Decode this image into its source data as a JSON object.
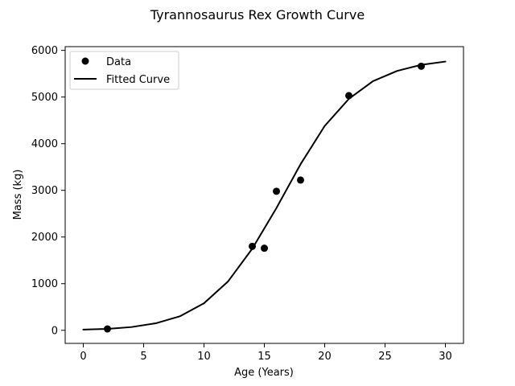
{
  "chart_data": {
    "type": "scatter",
    "title": "Tyrannosaurus Rex Growth Curve",
    "xlabel": "Age (Years)",
    "ylabel": "Mass (kg)",
    "xlim": [
      -1.5,
      31.5
    ],
    "ylim": [
      -280,
      6080
    ],
    "xticks": [
      0,
      5,
      10,
      15,
      20,
      25,
      30
    ],
    "yticks": [
      0,
      1000,
      2000,
      3000,
      4000,
      5000,
      6000
    ],
    "grid": false,
    "legend_position": "top-left",
    "series": [
      {
        "name": "Data",
        "kind": "scatter",
        "marker": "circle",
        "color": "#000000",
        "points": [
          {
            "x": 2,
            "y": 30
          },
          {
            "x": 14,
            "y": 1800
          },
          {
            "x": 15,
            "y": 1760
          },
          {
            "x": 16,
            "y": 2980
          },
          {
            "x": 18,
            "y": 3220
          },
          {
            "x": 22,
            "y": 5030
          },
          {
            "x": 28,
            "y": 5660
          }
        ]
      },
      {
        "name": "Fitted Curve",
        "kind": "line",
        "color": "#000000",
        "points": [
          {
            "x": 0,
            "y": 15
          },
          {
            "x": 2,
            "y": 30
          },
          {
            "x": 4,
            "y": 70
          },
          {
            "x": 6,
            "y": 150
          },
          {
            "x": 8,
            "y": 300
          },
          {
            "x": 10,
            "y": 580
          },
          {
            "x": 12,
            "y": 1050
          },
          {
            "x": 14,
            "y": 1750
          },
          {
            "x": 16,
            "y": 2620
          },
          {
            "x": 18,
            "y": 3560
          },
          {
            "x": 20,
            "y": 4380
          },
          {
            "x": 22,
            "y": 4960
          },
          {
            "x": 24,
            "y": 5340
          },
          {
            "x": 26,
            "y": 5560
          },
          {
            "x": 28,
            "y": 5690
          },
          {
            "x": 30,
            "y": 5760
          }
        ]
      }
    ]
  }
}
